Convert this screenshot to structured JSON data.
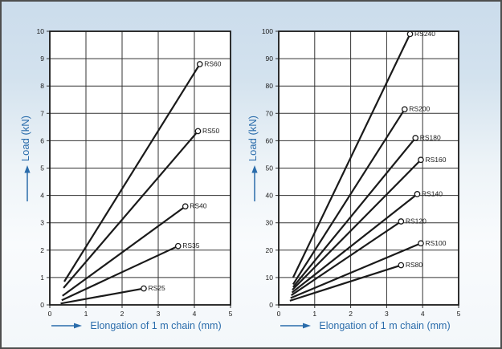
{
  "figure": {
    "accent_color": "#2a6cab",
    "line_color": "#1a1a1a",
    "grid_color": "#333333",
    "tick_label_color": "#1a1a1a",
    "plot_bg": "#ffffff",
    "frame_border_color": "#4e4e4e"
  },
  "chart_data": [
    {
      "type": "line",
      "title": "",
      "xlabel": "Elongation of 1 m chain (mm)",
      "ylabel": "Load (kN)",
      "xlim": [
        0,
        5
      ],
      "ylim": [
        0,
        10
      ],
      "xticks": [
        0,
        1,
        2,
        3,
        4,
        5
      ],
      "yticks": [
        0,
        1,
        2,
        3,
        4,
        5,
        6,
        7,
        8,
        9,
        10
      ],
      "grid": true,
      "marker": "open-circle",
      "legend_position": "end-of-line",
      "series": [
        {
          "name": "RS60",
          "points": [
            [
              0.4,
              0.85
            ],
            [
              4.15,
              8.8
            ]
          ]
        },
        {
          "name": "RS50",
          "points": [
            [
              0.38,
              0.62
            ],
            [
              4.1,
              6.35
            ]
          ]
        },
        {
          "name": "RS40",
          "points": [
            [
              0.35,
              0.33
            ],
            [
              3.75,
              3.6
            ]
          ]
        },
        {
          "name": "RS35",
          "points": [
            [
              0.33,
              0.17
            ],
            [
              3.55,
              2.15
            ]
          ]
        },
        {
          "name": "RS25",
          "points": [
            [
              0.3,
              0.05
            ],
            [
              2.6,
              0.6
            ]
          ]
        }
      ]
    },
    {
      "type": "line",
      "title": "",
      "xlabel": "Elongation of 1 m chain (mm)",
      "ylabel": "Load (kN)",
      "xlim": [
        0,
        5
      ],
      "ylim": [
        0,
        100
      ],
      "xticks": [
        0,
        1,
        2,
        3,
        4,
        5
      ],
      "yticks": [
        0,
        10,
        20,
        30,
        40,
        50,
        60,
        70,
        80,
        90,
        100
      ],
      "grid": true,
      "marker": "open-circle",
      "legend_position": "end-of-line",
      "series": [
        {
          "name": "RS240",
          "points": [
            [
              0.4,
              10.0
            ],
            [
              3.65,
              99.0
            ]
          ]
        },
        {
          "name": "RS200",
          "points": [
            [
              0.4,
              7.5
            ],
            [
              3.5,
              71.5
            ]
          ]
        },
        {
          "name": "RS180",
          "points": [
            [
              0.4,
              6.5
            ],
            [
              3.8,
              61.0
            ]
          ]
        },
        {
          "name": "RS160",
          "points": [
            [
              0.38,
              5.5
            ],
            [
              3.95,
              53.0
            ]
          ]
        },
        {
          "name": "RS140",
          "points": [
            [
              0.37,
              4.5
            ],
            [
              3.85,
              40.5
            ]
          ]
        },
        {
          "name": "RS120",
          "points": [
            [
              0.35,
              3.5
            ],
            [
              3.4,
              30.5
            ]
          ]
        },
        {
          "name": "RS100",
          "points": [
            [
              0.33,
              2.5
            ],
            [
              3.95,
              22.5
            ]
          ]
        },
        {
          "name": "RS80",
          "points": [
            [
              0.31,
              1.5
            ],
            [
              3.4,
              14.5
            ]
          ]
        }
      ]
    }
  ]
}
